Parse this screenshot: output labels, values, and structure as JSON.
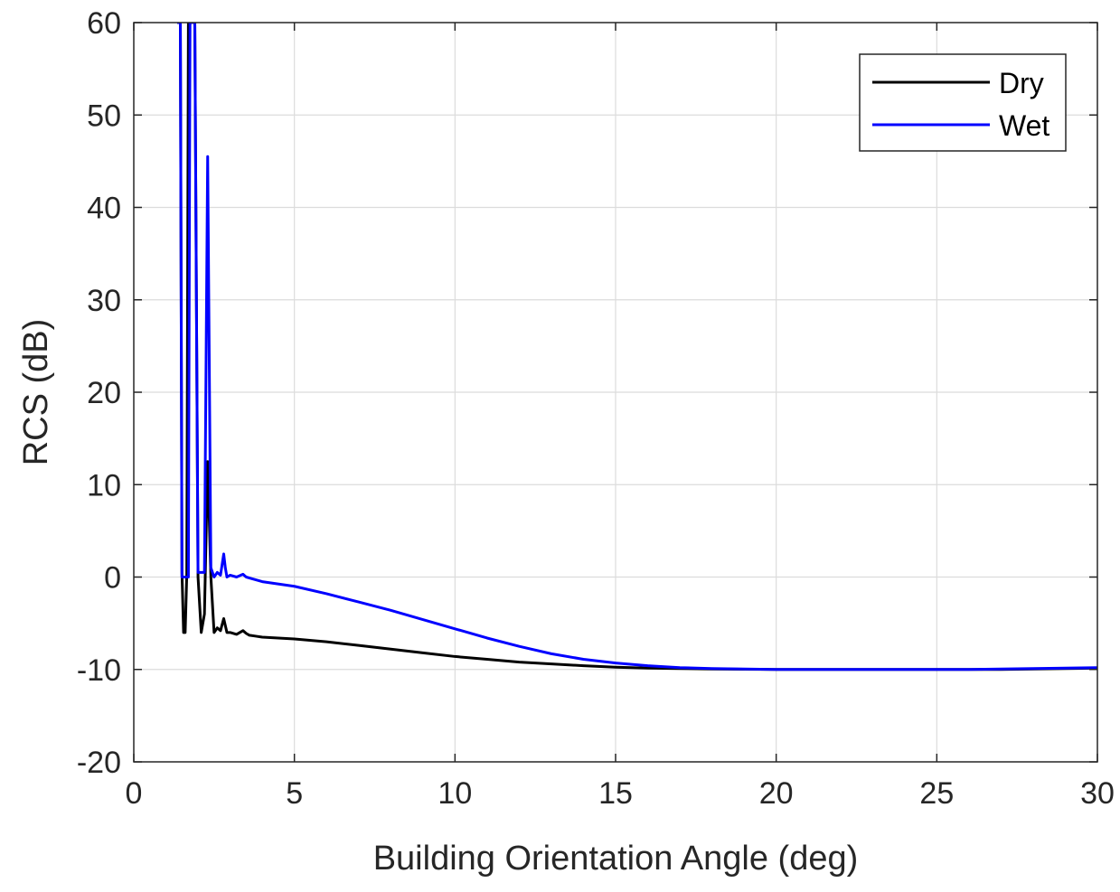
{
  "chart_data": {
    "type": "line",
    "title": "",
    "xlabel": "Building Orientation Angle (deg)",
    "ylabel": "RCS (dB)",
    "xlim": [
      0,
      30
    ],
    "ylim": [
      -20,
      60
    ],
    "xticks": [
      0,
      5,
      10,
      15,
      20,
      25,
      30
    ],
    "yticks": [
      -20,
      -10,
      0,
      10,
      20,
      30,
      40,
      50,
      60
    ],
    "xtick_labels": [
      "0",
      "5",
      "10",
      "15",
      "20",
      "25",
      "30"
    ],
    "ytick_labels": [
      "-20",
      "-10",
      "0",
      "10",
      "20",
      "30",
      "40",
      "50",
      "60"
    ],
    "grid": true,
    "legend_position": "top-right",
    "series": [
      {
        "name": "Dry",
        "color": "#000000",
        "x": [
          1.45,
          1.5,
          1.55,
          1.6,
          1.65,
          1.7,
          1.8,
          1.9,
          2.0,
          2.1,
          2.2,
          2.3,
          2.4,
          2.5,
          2.6,
          2.7,
          2.8,
          2.9,
          3.0,
          3.2,
          3.4,
          3.5,
          3.6,
          3.8,
          4.0,
          4.5,
          5,
          6,
          7,
          8,
          9,
          10,
          11,
          12,
          13,
          14,
          15,
          16,
          17,
          18,
          19,
          20,
          21,
          22,
          23,
          24,
          25,
          26,
          27,
          28,
          29,
          30
        ],
        "y": [
          60,
          0.5,
          -6,
          -6,
          0.3,
          60,
          60,
          60,
          0,
          -6,
          -4,
          12.5,
          0,
          -6,
          -5.5,
          -5.8,
          -4.5,
          -6,
          -6,
          -6.2,
          -5.8,
          -6.1,
          -6.3,
          -6.4,
          -6.5,
          -6.6,
          -6.7,
          -7.0,
          -7.4,
          -7.8,
          -8.2,
          -8.6,
          -8.9,
          -9.2,
          -9.4,
          -9.6,
          -9.75,
          -9.85,
          -9.9,
          -9.95,
          -9.97,
          -10.0,
          -10.0,
          -10.0,
          -10.0,
          -10.0,
          -10.0,
          -10.0,
          -10.0,
          -9.95,
          -9.9,
          -9.85
        ]
      },
      {
        "name": "Wet",
        "color": "#0000ff",
        "x": [
          1.35,
          1.4,
          1.45,
          1.5,
          1.55,
          1.6,
          1.65,
          1.7,
          1.75,
          1.8,
          1.85,
          1.9,
          2.0,
          2.1,
          2.2,
          2.3,
          2.4,
          2.5,
          2.6,
          2.7,
          2.8,
          2.85,
          2.9,
          3.0,
          3.2,
          3.4,
          3.5,
          3.7,
          4.0,
          5,
          6,
          7,
          8,
          9,
          10,
          11,
          12,
          13,
          14,
          15,
          16,
          17,
          18,
          19,
          20,
          21,
          22,
          23,
          24,
          25,
          26,
          27,
          28,
          29,
          30
        ],
        "y": [
          60,
          60,
          60,
          0,
          0,
          0,
          0,
          0,
          60,
          60,
          60,
          60,
          0.5,
          0.5,
          0.5,
          45.5,
          1,
          0,
          0.5,
          0.2,
          2.5,
          1,
          0,
          0.2,
          0,
          0.3,
          0,
          -0.2,
          -0.5,
          -1.0,
          -1.8,
          -2.7,
          -3.6,
          -4.6,
          -5.6,
          -6.6,
          -7.5,
          -8.3,
          -8.9,
          -9.3,
          -9.6,
          -9.8,
          -9.9,
          -9.95,
          -10.0,
          -10.0,
          -10.0,
          -10.0,
          -10.0,
          -10.0,
          -10.0,
          -9.95,
          -9.9,
          -9.85,
          -9.8
        ]
      }
    ]
  }
}
